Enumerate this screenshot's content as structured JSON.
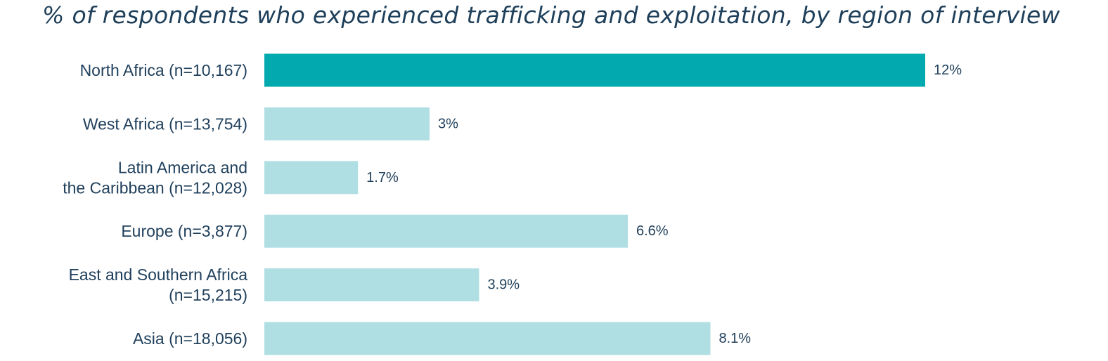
{
  "chart_data": {
    "type": "bar",
    "orientation": "horizontal",
    "title": "% of respondents who experienced trafficking and exploitation, by region of interview",
    "categories": [
      [
        "North Africa (n=10,167)"
      ],
      [
        "West Africa (n=13,754)"
      ],
      [
        "Latin America and",
        "the Caribbean (n=12,028)"
      ],
      [
        "Europe (n=3,877)"
      ],
      [
        "East and Southern Africa",
        "(n=15,215)"
      ],
      [
        "Asia (n=18,056)"
      ]
    ],
    "values": [
      12,
      3,
      1.7,
      6.6,
      3.9,
      8.1
    ],
    "value_labels": [
      "12%",
      "3%",
      "1.7%",
      "6.6%",
      "3.9%",
      "8.1%"
    ],
    "highlight_index": 0,
    "xlim": [
      0,
      12
    ],
    "grid": false,
    "legend": "none",
    "colors": {
      "highlight": "#02a9ae",
      "bar": "#b0dfe3",
      "text": "#1f3f5b"
    }
  }
}
